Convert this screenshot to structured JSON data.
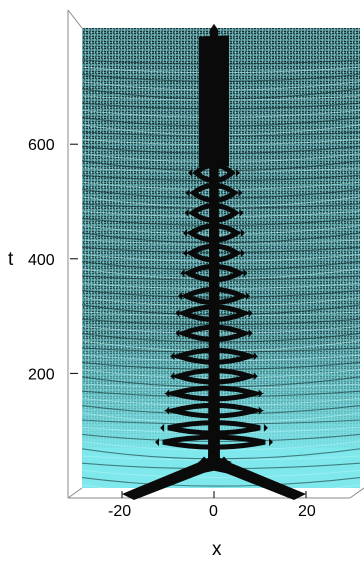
{
  "chart_data": {
    "type": "surface-3d",
    "xlabel": "x",
    "ylabel": "t",
    "xlim": [
      -22,
      22
    ],
    "ylim": [
      0,
      800
    ],
    "x_ticks": [
      -20,
      0,
      20
    ],
    "x_tick_labels": [
      "-20",
      "0",
      "20"
    ],
    "y_ticks": [
      200,
      400,
      600
    ],
    "y_tick_labels": [
      "200",
      "400",
      "600"
    ],
    "colors": {
      "surface": "#7ee8ec",
      "surface_dark": "#1d3a3d",
      "wave": "#0a0a0a",
      "axes": "#888888"
    }
  }
}
